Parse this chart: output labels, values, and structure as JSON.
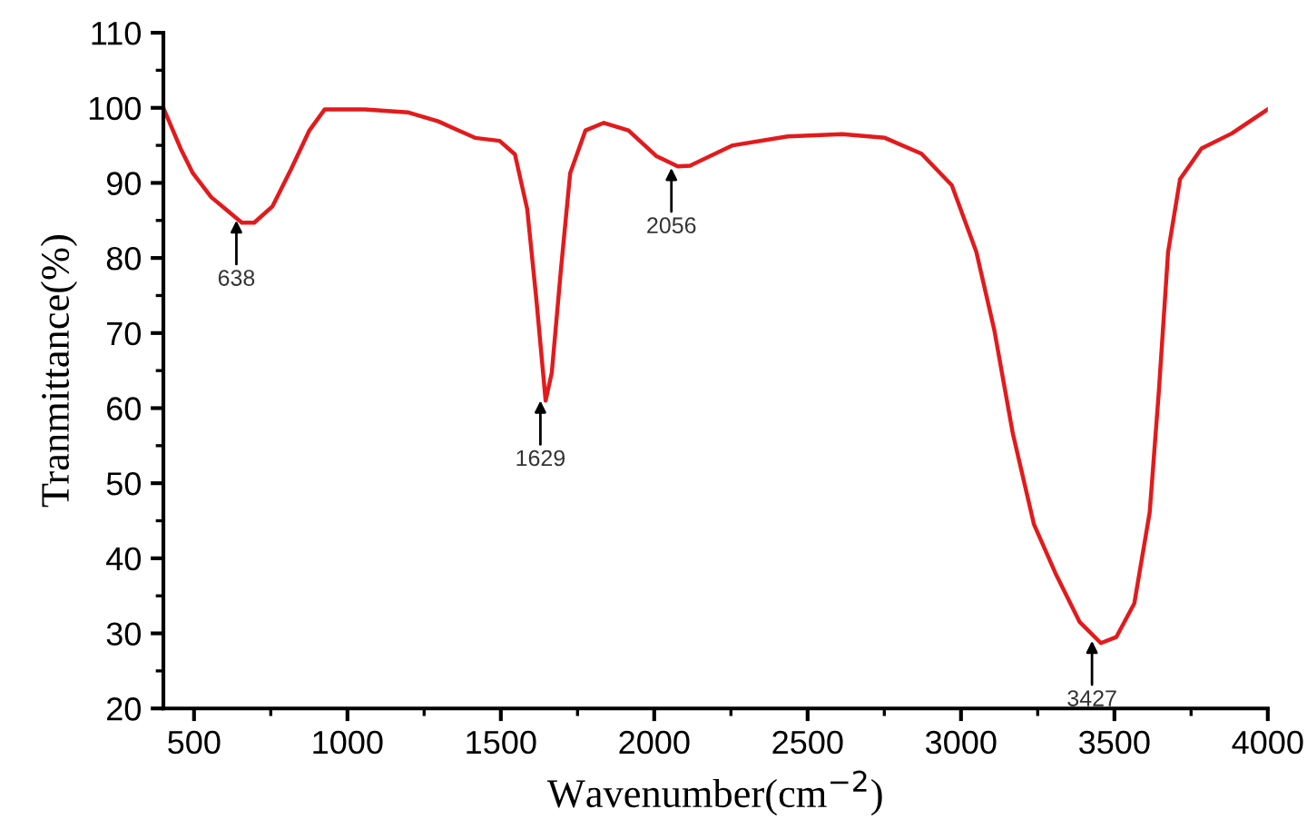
{
  "chart_data": {
    "type": "line",
    "xlabel": "Wavenumber(cm$^{−2}$)",
    "ylabel": "Tranmittance(%)",
    "xlim": [
      400,
      4000
    ],
    "xticks": [
      500,
      1000,
      1500,
      2000,
      2500,
      3000,
      3500,
      4000
    ],
    "ylim": [
      20,
      110
    ],
    "yticks": [
      20,
      30,
      40,
      50,
      60,
      70,
      80,
      90,
      100,
      110
    ],
    "grid": false,
    "legend": false,
    "marker": "none",
    "line_style": "solid",
    "series": [
      {
        "color": "#e31a1c",
        "x": [
          400,
          456,
          496,
          556,
          656,
          696,
          756,
          816,
          876,
          926,
          1056,
          1196,
          1296,
          1416,
          1496,
          1546,
          1586,
          1616,
          1646,
          1666,
          1696,
          1726,
          1776,
          1836,
          1916,
          2006,
          2077,
          2117,
          2256,
          2435,
          2613,
          2752,
          2871,
          2970,
          3050,
          3109,
          3169,
          3238,
          3308,
          3387,
          3456,
          3506,
          3565,
          3615,
          3645,
          3675,
          3714,
          3784,
          3883,
          4000
        ],
        "values": [
          100,
          94.6,
          91.3,
          88.1,
          84.7,
          84.7,
          86.9,
          91.8,
          97,
          99.8,
          99.8,
          99.4,
          98.2,
          96,
          95.6,
          93.8,
          86.5,
          74.4,
          61,
          64.7,
          78.5,
          91.3,
          97,
          98,
          97,
          93.6,
          92.2,
          92.3,
          95,
          96.2,
          96.5,
          96,
          93.9,
          89.7,
          80.8,
          70.3,
          56.6,
          44.5,
          38,
          31.5,
          28.7,
          29.5,
          34,
          46.1,
          62.3,
          80.8,
          90.5,
          94.6,
          96.6,
          99.8
        ]
      }
    ],
    "annotations": [
      {
        "text": "638",
        "x": 638,
        "y": 85
      },
      {
        "text": "1629",
        "x": 1629,
        "y": 61
      },
      {
        "text": "2056",
        "x": 2056,
        "y": 92
      },
      {
        "text": "3427",
        "x": 3427,
        "y": 29
      }
    ]
  }
}
